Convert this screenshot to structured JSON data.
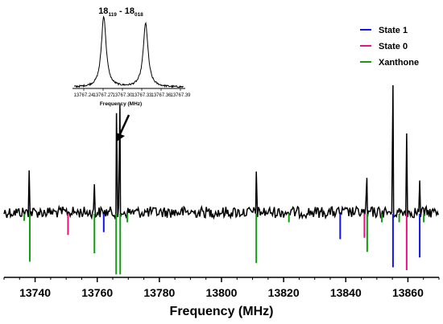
{
  "chart_data": [
    {
      "type": "line",
      "xlabel": "Frequency (MHz)",
      "xlim": [
        13730,
        13870
      ],
      "xticks": [
        "13740",
        "13760",
        "13780",
        "13800",
        "13820",
        "13840",
        "13860"
      ],
      "xtick_values": [
        13740,
        13760,
        13780,
        13800,
        13820,
        13840,
        13860
      ],
      "spectrum_peaks": [
        {
          "x": 13738.1,
          "intensity": 0.33
        },
        {
          "x": 13759.1,
          "intensity": 0.22
        },
        {
          "x": 13766.2,
          "intensity": 0.78
        },
        {
          "x": 13767.3,
          "intensity": 0.85
        },
        {
          "x": 13811.2,
          "intensity": 0.32
        },
        {
          "x": 13846.8,
          "intensity": 0.27
        },
        {
          "x": 13855.2,
          "intensity": 1.0
        },
        {
          "x": 13859.6,
          "intensity": 0.62
        },
        {
          "x": 13863.8,
          "intensity": 0.25
        }
      ],
      "series": [
        {
          "name": "State 1",
          "color": "#1414e6",
          "sticks": [
            {
              "x": 13762.1,
              "intensity": 0.13
            },
            {
              "x": 13838.2,
              "intensity": 0.18
            },
            {
              "x": 13855.2,
              "intensity": 0.38
            },
            {
              "x": 13863.8,
              "intensity": 0.31
            }
          ]
        },
        {
          "name": "State 0",
          "color": "#e8137e",
          "sticks": [
            {
              "x": 13750.6,
              "intensity": 0.15
            },
            {
              "x": 13846.0,
              "intensity": 0.17
            },
            {
              "x": 13859.6,
              "intensity": 0.4
            }
          ]
        },
        {
          "name": "Xanthone",
          "color": "#139b13",
          "sticks": [
            {
              "x": 13736.5,
              "intensity": 0.05
            },
            {
              "x": 13738.3,
              "intensity": 0.34
            },
            {
              "x": 13759.1,
              "intensity": 0.28
            },
            {
              "x": 13766.1,
              "intensity": 0.43
            },
            {
              "x": 13767.4,
              "intensity": 0.43
            },
            {
              "x": 13769.7,
              "intensity": 0.06
            },
            {
              "x": 13811.2,
              "intensity": 0.35
            },
            {
              "x": 13821.7,
              "intensity": 0.06
            },
            {
              "x": 13846.9,
              "intensity": 0.27
            },
            {
              "x": 13851.6,
              "intensity": 0.06
            },
            {
              "x": 13857.2,
              "intensity": 0.06
            },
            {
              "x": 13865.1,
              "intensity": 0.06
            }
          ]
        }
      ],
      "legend_position": "top-right",
      "grid": false
    },
    {
      "type": "line",
      "title_main": "18",
      "title_sub1": "119",
      "title_mid": " - 18",
      "title_sub2": "018",
      "xlabel": "Frequency (MHz)",
      "xlim": [
        13767.225,
        13767.395
      ],
      "xticks": [
        "13767.24",
        "13767.27",
        "13767.30",
        "13767.33",
        "13767.36",
        "13767.39"
      ],
      "xtick_values": [
        13767.24,
        13767.27,
        13767.3,
        13767.33,
        13767.36,
        13767.39
      ],
      "peaks": [
        {
          "x": 13767.271,
          "intensity": 1.0
        },
        {
          "x": 13767.336,
          "intensity": 0.9
        }
      ]
    }
  ]
}
